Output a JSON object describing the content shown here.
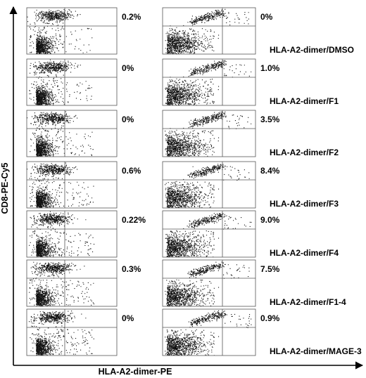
{
  "chart_data": {
    "type": "scatter",
    "xlabel": "HLA-A2-dimer-PE",
    "ylabel": "CD8-PE-Cy5",
    "panels": [
      {
        "row": 1,
        "column": 1,
        "percent": "0.2%",
        "label": ""
      },
      {
        "row": 1,
        "column": 2,
        "percent": "0%",
        "label": "HLA-A2-dimer/DMSO"
      },
      {
        "row": 2,
        "column": 1,
        "percent": "0%",
        "label": ""
      },
      {
        "row": 2,
        "column": 2,
        "percent": "1.0%",
        "label": "HLA-A2-dimer/F1"
      },
      {
        "row": 3,
        "column": 1,
        "percent": "0%",
        "label": ""
      },
      {
        "row": 3,
        "column": 2,
        "percent": "3.5%",
        "label": "HLA-A2-dimer/F2"
      },
      {
        "row": 4,
        "column": 1,
        "percent": "0.6%",
        "label": ""
      },
      {
        "row": 4,
        "column": 2,
        "percent": "8.4%",
        "label": "HLA-A2-dimer/F3"
      },
      {
        "row": 5,
        "column": 1,
        "percent": "0.22%",
        "label": ""
      },
      {
        "row": 5,
        "column": 2,
        "percent": "9.0%",
        "label": "HLA-A2-dimer/F4"
      },
      {
        "row": 6,
        "column": 1,
        "percent": "0.3%",
        "label": ""
      },
      {
        "row": 6,
        "column": 2,
        "percent": "7.5%",
        "label": "HLA-A2-dimer/F1-4"
      },
      {
        "row": 7,
        "column": 1,
        "percent": "0%",
        "label": ""
      },
      {
        "row": 7,
        "column": 2,
        "percent": "0.9%",
        "label": "HLA-A2-dimer/MAGE-3"
      }
    ]
  }
}
